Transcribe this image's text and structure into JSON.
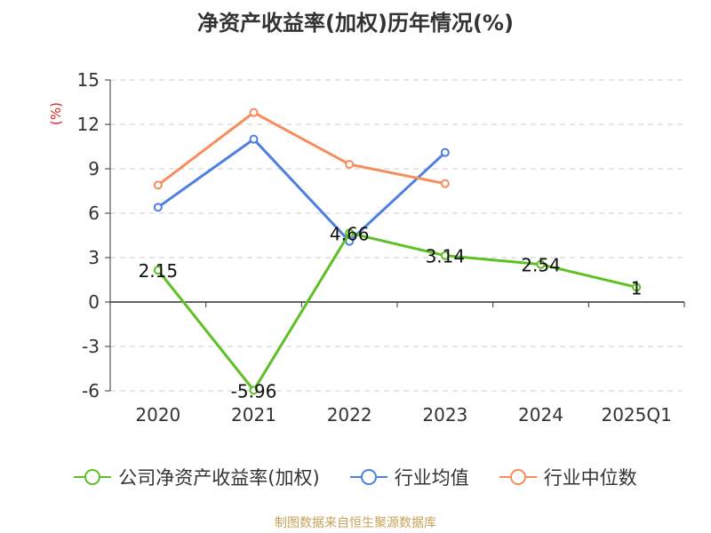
{
  "chart_data": {
    "type": "line",
    "title": "净资产收益率(加权)历年情况(%)",
    "ylabel": "(%)",
    "xlabel": "",
    "categories": [
      "2020",
      "2021",
      "2022",
      "2023",
      "2024",
      "2025Q1"
    ],
    "ylim": [
      -6,
      15
    ],
    "yticks": [
      15,
      12,
      9,
      6,
      3,
      0,
      -3,
      -6
    ],
    "grid": true,
    "legend_position": "bottom",
    "series": [
      {
        "name": "公司净资产收益率(加权)",
        "color": "#5ec024",
        "values": [
          2.15,
          -5.96,
          4.66,
          3.14,
          2.54,
          1
        ],
        "labels": [
          "2.15",
          "-5.96",
          "4.66",
          "3.14",
          "2.54",
          "1"
        ]
      },
      {
        "name": "行业均值",
        "color": "#4f7fe0",
        "values": [
          6.4,
          11.0,
          4.1,
          10.1,
          null,
          null
        ]
      },
      {
        "name": "行业中位数",
        "color": "#f78d5c",
        "values": [
          7.9,
          12.8,
          9.3,
          8.0,
          null,
          null
        ]
      }
    ],
    "source": "制图数据来自恒生聚源数据库"
  }
}
